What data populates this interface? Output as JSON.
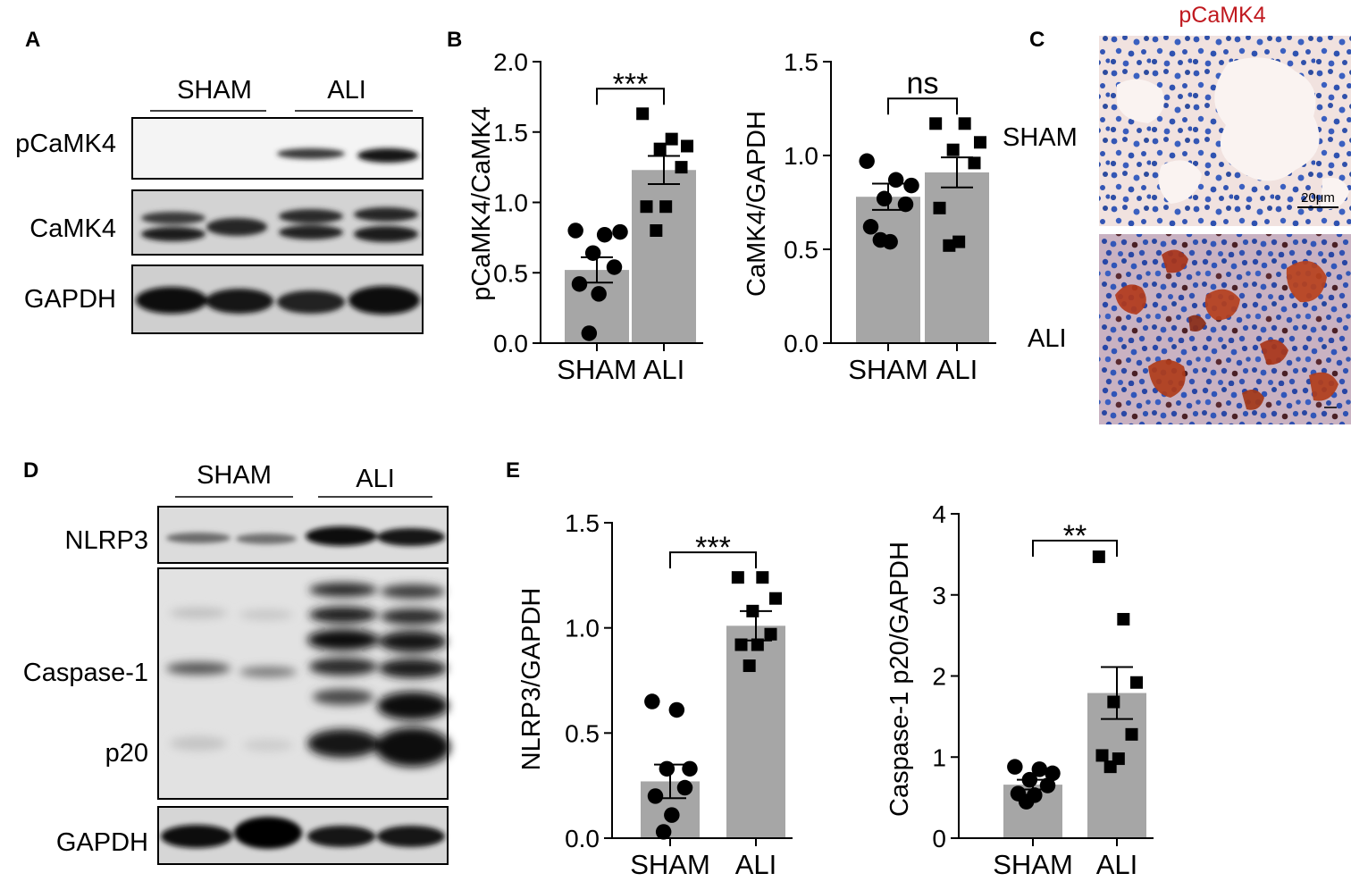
{
  "panels": {
    "A": {
      "letter": "A",
      "groups": [
        "SHAM",
        "ALI"
      ],
      "rows": [
        "pCaMK4",
        "CaMK4",
        "GAPDH"
      ]
    },
    "B": {
      "letter": "B"
    },
    "C": {
      "letter": "C",
      "title": "pCaMK4",
      "conditions": [
        "SHAM",
        "ALI"
      ],
      "scale_bar": "20μm",
      "colors": {
        "title": "#c0191f",
        "hematoxylin": "#2f52b8",
        "dab": "#b23a1c"
      }
    },
    "D": {
      "letter": "D",
      "groups": [
        "SHAM",
        "ALI"
      ],
      "rows": [
        "NLRP3",
        "Caspase-1",
        "p20",
        "GAPDH"
      ]
    },
    "E": {
      "letter": "E"
    }
  },
  "chart_data": [
    {
      "id": "B1",
      "type": "bar",
      "categories": [
        "SHAM",
        "ALI"
      ],
      "values": [
        0.52,
        1.23
      ],
      "sem": [
        0.09,
        0.1
      ],
      "points": [
        [
          0.8,
          0.77,
          0.79,
          0.64,
          0.54,
          0.42,
          0.35,
          0.07
        ],
        [
          1.63,
          1.45,
          1.4,
          1.38,
          1.25,
          0.97,
          0.97,
          0.8
        ]
      ],
      "markers": [
        "circle",
        "square"
      ],
      "ylabel": "pCaMK4/CaMK4",
      "ylim": [
        0,
        2.0
      ],
      "yticks": [
        "0.0",
        "0.5",
        "1.0",
        "1.5",
        "2.0"
      ],
      "significance": "***",
      "bar_color": "#a6a6a6"
    },
    {
      "id": "B2",
      "type": "bar",
      "categories": [
        "SHAM",
        "ALI"
      ],
      "values": [
        0.78,
        0.91
      ],
      "sem": [
        0.07,
        0.08
      ],
      "points": [
        [
          0.97,
          0.87,
          0.84,
          0.77,
          0.74,
          0.62,
          0.54,
          0.55
        ],
        [
          1.17,
          1.17,
          1.07,
          1.03,
          0.96,
          0.72,
          0.54,
          0.52
        ]
      ],
      "markers": [
        "circle",
        "square"
      ],
      "ylabel": "CaMK4/GAPDH",
      "ylim": [
        0,
        1.5
      ],
      "yticks": [
        "0.0",
        "0.5",
        "1.0",
        "1.5"
      ],
      "significance": "ns",
      "bar_color": "#a6a6a6"
    },
    {
      "id": "E1",
      "type": "bar",
      "categories": [
        "SHAM",
        "ALI"
      ],
      "values": [
        0.27,
        1.01
      ],
      "sem": [
        0.08,
        0.07
      ],
      "points": [
        [
          0.65,
          0.61,
          0.33,
          0.33,
          0.24,
          0.2,
          0.11,
          0.03
        ],
        [
          1.24,
          1.24,
          1.14,
          1.08,
          0.97,
          0.92,
          0.92,
          0.82
        ]
      ],
      "markers": [
        "circle",
        "square"
      ],
      "ylabel": "NLRP3/GAPDH",
      "ylim": [
        0,
        1.5
      ],
      "yticks": [
        "0.0",
        "0.5",
        "1.0",
        "1.5"
      ],
      "significance": "***",
      "bar_color": "#a6a6a6"
    },
    {
      "id": "E2",
      "type": "bar",
      "categories": [
        "SHAM",
        "ALI"
      ],
      "values": [
        0.66,
        1.79
      ],
      "sem": [
        0.06,
        0.32
      ],
      "points": [
        [
          0.88,
          0.85,
          0.8,
          0.72,
          0.65,
          0.55,
          0.53,
          0.45
        ],
        [
          3.47,
          2.7,
          1.92,
          1.68,
          1.28,
          1.02,
          0.98,
          0.88
        ]
      ],
      "markers": [
        "circle",
        "square"
      ],
      "ylabel": "Caspase-1 p20/GAPDH",
      "ylim": [
        0,
        4
      ],
      "yticks": [
        "0",
        "1",
        "2",
        "3",
        "4"
      ],
      "significance": "**",
      "bar_color": "#a6a6a6"
    }
  ]
}
